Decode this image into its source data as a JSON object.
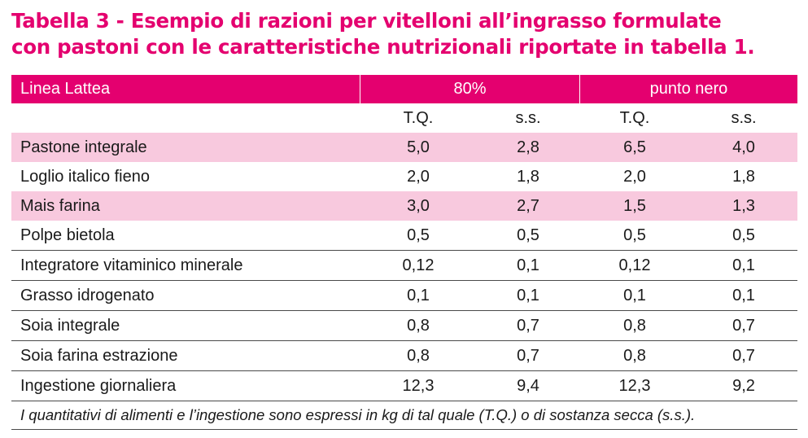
{
  "title": {
    "line1": "Tabella 3 -  Esempio di razioni per vitelloni all’ingrasso formulate",
    "line2": "con pastoni con le caratteristiche nutrizionali riportate in tabella 1."
  },
  "table": {
    "header": {
      "row_label": "Linea Lattea",
      "group1": "80%",
      "group2": "punto nero"
    },
    "subheader": [
      "T.Q.",
      "s.s.",
      "T.Q.",
      "s.s."
    ],
    "rows": [
      {
        "label": "Pastone integrale",
        "values": [
          "5,0",
          "2,8",
          "6,5",
          "4,0"
        ]
      },
      {
        "label": "Loglio italico fieno",
        "values": [
          "2,0",
          "1,8",
          "2,0",
          "1,8"
        ]
      },
      {
        "label": "Mais farina",
        "values": [
          "3,0",
          "2,7",
          "1,5",
          "1,3"
        ]
      },
      {
        "label": "Polpe bietola",
        "values": [
          "0,5",
          "0,5",
          "0,5",
          "0,5"
        ]
      },
      {
        "label": "Integratore vitaminico minerale",
        "values": [
          "0,12",
          "0,1",
          "0,12",
          "0,1"
        ]
      },
      {
        "label": "Grasso idrogenato",
        "values": [
          "0,1",
          "0,1",
          "0,1",
          "0,1"
        ]
      },
      {
        "label": "Soia integrale",
        "values": [
          "0,8",
          "0,7",
          "0,8",
          "0,7"
        ]
      },
      {
        "label": "Soia farina estrazione",
        "values": [
          "0,8",
          "0,7",
          "0,8",
          "0,7"
        ]
      },
      {
        "label": "Ingestione giornaliera",
        "values": [
          "12,3",
          "9,4",
          "12,3",
          "9,2"
        ]
      }
    ],
    "footnote": "I quantitativi di alimenti e l’ingestione sono espressi in kg di tal quale (T.Q.) o di sostanza secca (s.s.)."
  },
  "colors": {
    "accent": "#e4006f",
    "row_shade": "#f8c9de"
  }
}
